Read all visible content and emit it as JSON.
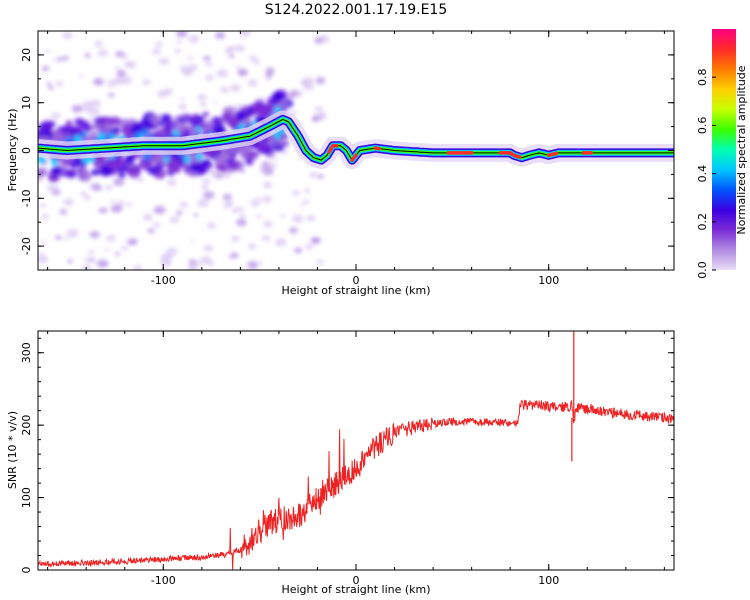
{
  "title": "S124.2022.001.17.19.E15",
  "chart_data": [
    {
      "type": "heatmap",
      "xlabel": "Height of straight line (km)",
      "ylabel": "Frequency (Hz)",
      "xlim": [
        -165,
        165
      ],
      "ylim": [
        -25,
        25
      ],
      "xticks": [
        -100,
        0,
        100
      ],
      "xtick_labels": [
        "-100",
        "0",
        "100"
      ],
      "yticks": [
        -20,
        -10,
        0,
        10,
        20
      ],
      "ytick_labels": [
        "-20",
        "-10",
        "0",
        "10",
        "20"
      ],
      "colorbar": {
        "label": "Normalized spectral amplitude",
        "range": [
          0,
          1
        ],
        "ticks": [
          "0.0",
          "0.2",
          "0.4",
          "0.6",
          "0.8"
        ],
        "tick_values": [
          0,
          0.2,
          0.4,
          0.6,
          0.8
        ],
        "colors": [
          "#e9dcf7",
          "#b08be0",
          "#7a2bd6",
          "#3a00e0",
          "#0055ff",
          "#00c8ff",
          "#00ffb0",
          "#3cff00",
          "#c8ff00",
          "#ffd000",
          "#ff7a00",
          "#ff2a2a",
          "#ff0080"
        ]
      },
      "ridge": {
        "x": [
          -165,
          -150,
          -130,
          -110,
          -90,
          -70,
          -55,
          -45,
          -38,
          -35,
          -30,
          -26,
          -22,
          -18,
          -15,
          -12,
          -8,
          -5,
          -2,
          2,
          10,
          20,
          40,
          60,
          80,
          82,
          86,
          90,
          95,
          100,
          105,
          115,
          130,
          150,
          165
        ],
        "y": [
          0.5,
          0,
          0.5,
          1,
          1,
          2,
          3,
          5,
          6.5,
          6,
          3,
          0,
          -1.5,
          -2,
          -1,
          1,
          1,
          0,
          -2,
          0,
          0.5,
          0,
          -0.5,
          -0.5,
          -0.5,
          -1,
          -1.5,
          -1,
          -0.5,
          -1,
          -0.5,
          -0.5,
          -0.5,
          -0.5,
          -0.5
        ]
      }
    },
    {
      "type": "line",
      "xlabel": "Height of straight line (km)",
      "ylabel": "SNR (10 * v/v)",
      "xlim": [
        -165,
        165
      ],
      "ylim": [
        0,
        330
      ],
      "xticks": [
        -100,
        0,
        100
      ],
      "xtick_labels": [
        "-100",
        "0",
        "100"
      ],
      "yticks": [
        0,
        100,
        200,
        300
      ],
      "ytick_labels": [
        "0",
        "100",
        "200",
        "300"
      ],
      "series": [
        {
          "color": "#ee2222",
          "x": [
            -165,
            -140,
            -120,
            -100,
            -80,
            -65,
            -60,
            -55,
            -50,
            -45,
            -40,
            -35,
            -30,
            -25,
            -20,
            -15,
            -10,
            -5,
            0,
            5,
            10,
            15,
            20,
            25,
            30,
            40,
            50,
            60,
            70,
            80,
            84,
            85,
            86,
            90,
            100,
            110,
            112,
            113,
            114,
            116,
            120,
            130,
            140,
            150,
            160,
            165
          ],
          "y": [
            8,
            10,
            12,
            15,
            18,
            22,
            28,
            40,
            55,
            65,
            70,
            72,
            75,
            85,
            100,
            110,
            120,
            130,
            140,
            155,
            170,
            180,
            188,
            193,
            197,
            202,
            205,
            205,
            204,
            203,
            202,
            225,
            228,
            228,
            226,
            225,
            228,
            200,
            222,
            225,
            222,
            218,
            215,
            213,
            210,
            208
          ]
        }
      ],
      "spikes": [
        {
          "x": 113,
          "y": 330
        },
        {
          "x": 112,
          "y": 150
        }
      ]
    }
  ]
}
